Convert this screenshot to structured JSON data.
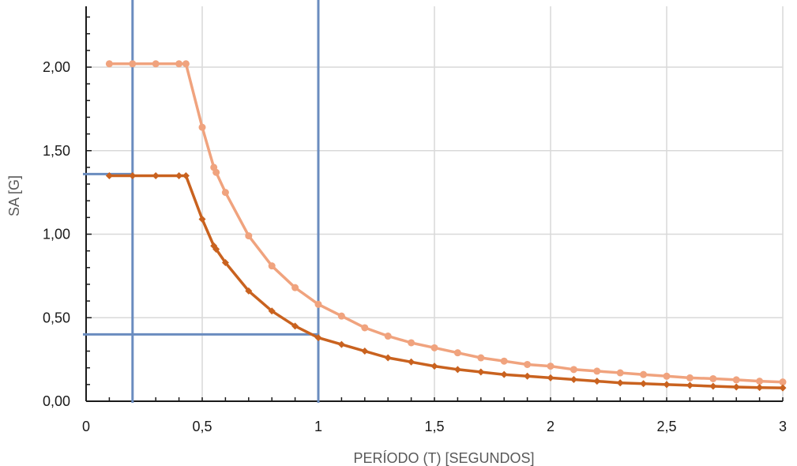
{
  "chart_data": {
    "type": "line",
    "title": "",
    "xlabel": "PERÍODO (T) [SEGUNDOS]",
    "ylabel": "SA [G]",
    "xlim": [
      0,
      3
    ],
    "ylim": [
      0,
      2.4
    ],
    "grid": true,
    "legend": "none",
    "x_ticks": [
      {
        "value": 0,
        "label": "0"
      },
      {
        "value": 0.5,
        "label": "0,5"
      },
      {
        "value": 1,
        "label": "1"
      },
      {
        "value": 1.5,
        "label": "1,5"
      },
      {
        "value": 2,
        "label": "2"
      },
      {
        "value": 2.5,
        "label": "2,5"
      },
      {
        "value": 3,
        "label": "3"
      }
    ],
    "y_ticks": [
      {
        "value": 0,
        "label": "0,00"
      },
      {
        "value": 0.5,
        "label": "0,50"
      },
      {
        "value": 1,
        "label": "1,00"
      },
      {
        "value": 1.5,
        "label": "1,50"
      },
      {
        "value": 2,
        "label": "2,00"
      }
    ],
    "series": [
      {
        "color": "#f0a37e",
        "marker": "circle",
        "x": [
          0.1,
          0.2,
          0.3,
          0.4,
          0.43,
          0.5,
          0.55,
          0.56,
          0.6,
          0.7,
          0.8,
          0.9,
          1.0,
          1.1,
          1.2,
          1.3,
          1.4,
          1.5,
          1.6,
          1.7,
          1.8,
          1.9,
          2.0,
          2.1,
          2.2,
          2.3,
          2.4,
          2.5,
          2.6,
          2.7,
          2.8,
          2.9,
          3.0
        ],
        "y": [
          2.02,
          2.02,
          2.02,
          2.02,
          2.02,
          1.64,
          1.4,
          1.37,
          1.25,
          0.99,
          0.81,
          0.68,
          0.58,
          0.51,
          0.44,
          0.39,
          0.35,
          0.32,
          0.29,
          0.26,
          0.24,
          0.22,
          0.21,
          0.19,
          0.18,
          0.17,
          0.16,
          0.15,
          0.14,
          0.135,
          0.128,
          0.12,
          0.115
        ]
      },
      {
        "color": "#c9621f",
        "marker": "diamond",
        "x": [
          0.1,
          0.2,
          0.3,
          0.4,
          0.43,
          0.5,
          0.55,
          0.56,
          0.6,
          0.7,
          0.8,
          0.9,
          1.0,
          1.1,
          1.2,
          1.3,
          1.4,
          1.5,
          1.6,
          1.7,
          1.8,
          1.9,
          2.0,
          2.1,
          2.2,
          2.3,
          2.4,
          2.5,
          2.6,
          2.7,
          2.8,
          2.9,
          3.0
        ],
        "y": [
          1.35,
          1.35,
          1.35,
          1.35,
          1.35,
          1.09,
          0.93,
          0.91,
          0.83,
          0.66,
          0.54,
          0.45,
          0.38,
          0.34,
          0.3,
          0.26,
          0.235,
          0.21,
          0.19,
          0.175,
          0.16,
          0.15,
          0.14,
          0.13,
          0.12,
          0.11,
          0.105,
          0.1,
          0.095,
          0.09,
          0.085,
          0.082,
          0.08
        ]
      }
    ],
    "annotations": {
      "color": "#6a8cbf",
      "guides": [
        {
          "kind": "horizontal",
          "y": 1.36,
          "x_from": 0,
          "x_to": 0.2
        },
        {
          "kind": "vertical",
          "x": 0.2,
          "y_from": 0,
          "y_to": 1.36
        },
        {
          "kind": "horizontal",
          "y": 0.4,
          "x_from": 0,
          "x_to": 1.0
        },
        {
          "kind": "vertical",
          "x": 1.0,
          "y_from": 0,
          "y_to": 0.4
        }
      ]
    }
  }
}
